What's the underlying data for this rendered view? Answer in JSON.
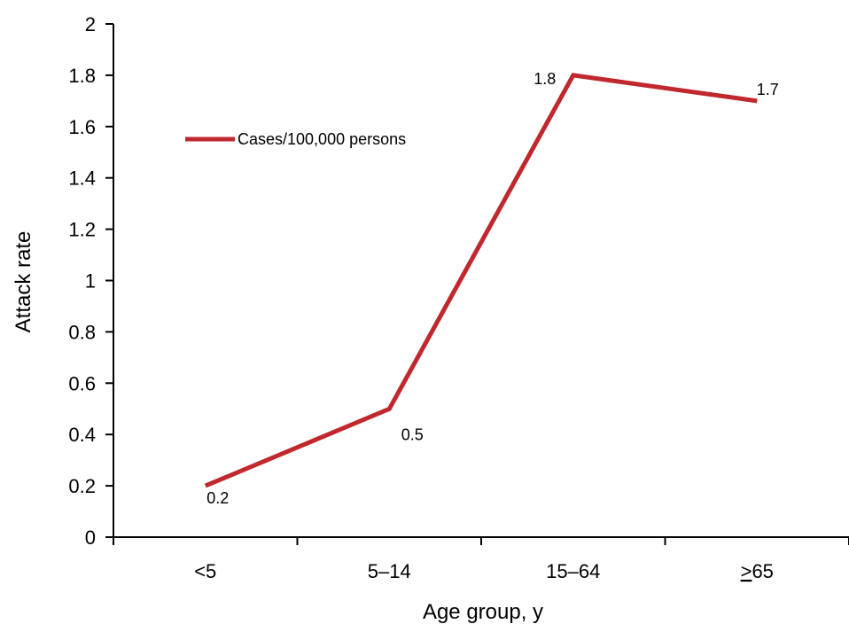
{
  "chart_data": {
    "type": "line",
    "title": "",
    "xlabel": "Age group, y",
    "ylabel": "Attack rate",
    "categories": [
      "<5",
      "5–14",
      "15–64",
      "≥65"
    ],
    "series": [
      {
        "name": "Cases/100,000 persons",
        "color": "#c0282d",
        "values": [
          0.2,
          0.5,
          1.8,
          1.7
        ],
        "labels": [
          "0.2",
          "0.5",
          "1.8",
          "1.7"
        ]
      }
    ],
    "ylim": [
      0,
      2
    ],
    "yticks": [
      "0",
      "0.2",
      "0.4",
      "0.6",
      "0.8",
      "1",
      "1.2",
      "1.4",
      "1.6",
      "1.8",
      "2"
    ],
    "grid": false,
    "legend": "top-left"
  }
}
